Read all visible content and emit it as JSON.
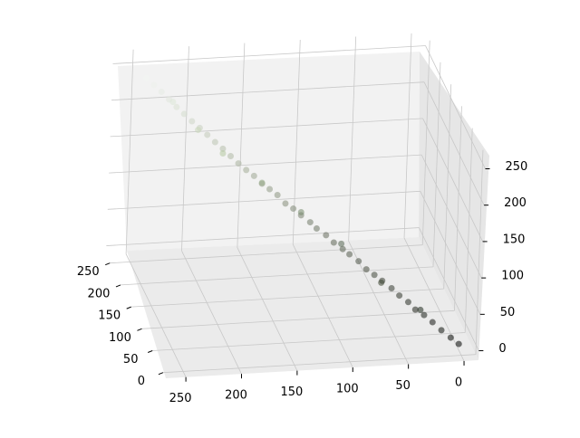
{
  "chart_data": {
    "type": "scatter3d",
    "x": [
      2,
      8,
      15,
      22,
      28,
      35,
      40,
      47,
      53,
      60,
      66,
      72,
      78,
      85,
      90,
      97,
      103,
      110,
      115,
      122,
      128,
      134,
      140,
      146,
      152,
      158,
      164,
      170,
      176,
      182,
      188,
      194,
      200,
      206,
      212,
      218,
      224,
      230,
      236,
      242,
      120,
      180,
      60,
      200,
      90,
      150,
      30,
      220
    ],
    "y": [
      3,
      10,
      18,
      24,
      33,
      38,
      46,
      52,
      58,
      66,
      72,
      79,
      85,
      92,
      98,
      104,
      110,
      118,
      123,
      130,
      136,
      142,
      149,
      155,
      160,
      167,
      173,
      179,
      185,
      191,
      197,
      203,
      208,
      214,
      220,
      225,
      230,
      235,
      240,
      245,
      140,
      200,
      70,
      215,
      105,
      170,
      40,
      232
    ],
    "z": [
      1,
      6,
      12,
      20,
      25,
      30,
      36,
      42,
      49,
      55,
      60,
      64,
      72,
      78,
      82,
      88,
      95,
      100,
      106,
      112,
      118,
      122,
      130,
      135,
      140,
      147,
      152,
      158,
      165,
      172,
      178,
      185,
      192,
      198,
      205,
      212,
      220,
      228,
      235,
      242,
      110,
      160,
      50,
      185,
      85,
      135,
      28,
      215
    ],
    "xlim": [
      -13,
      268
    ],
    "ylim": [
      -13,
      268
    ],
    "zlim": [
      -13,
      268
    ],
    "xticks": [
      0,
      50,
      100,
      150,
      200,
      250
    ],
    "yticks": [
      0,
      50,
      100,
      150,
      200,
      250
    ],
    "zticks": [
      0,
      50,
      100,
      150,
      200,
      250
    ],
    "grid": true
  }
}
